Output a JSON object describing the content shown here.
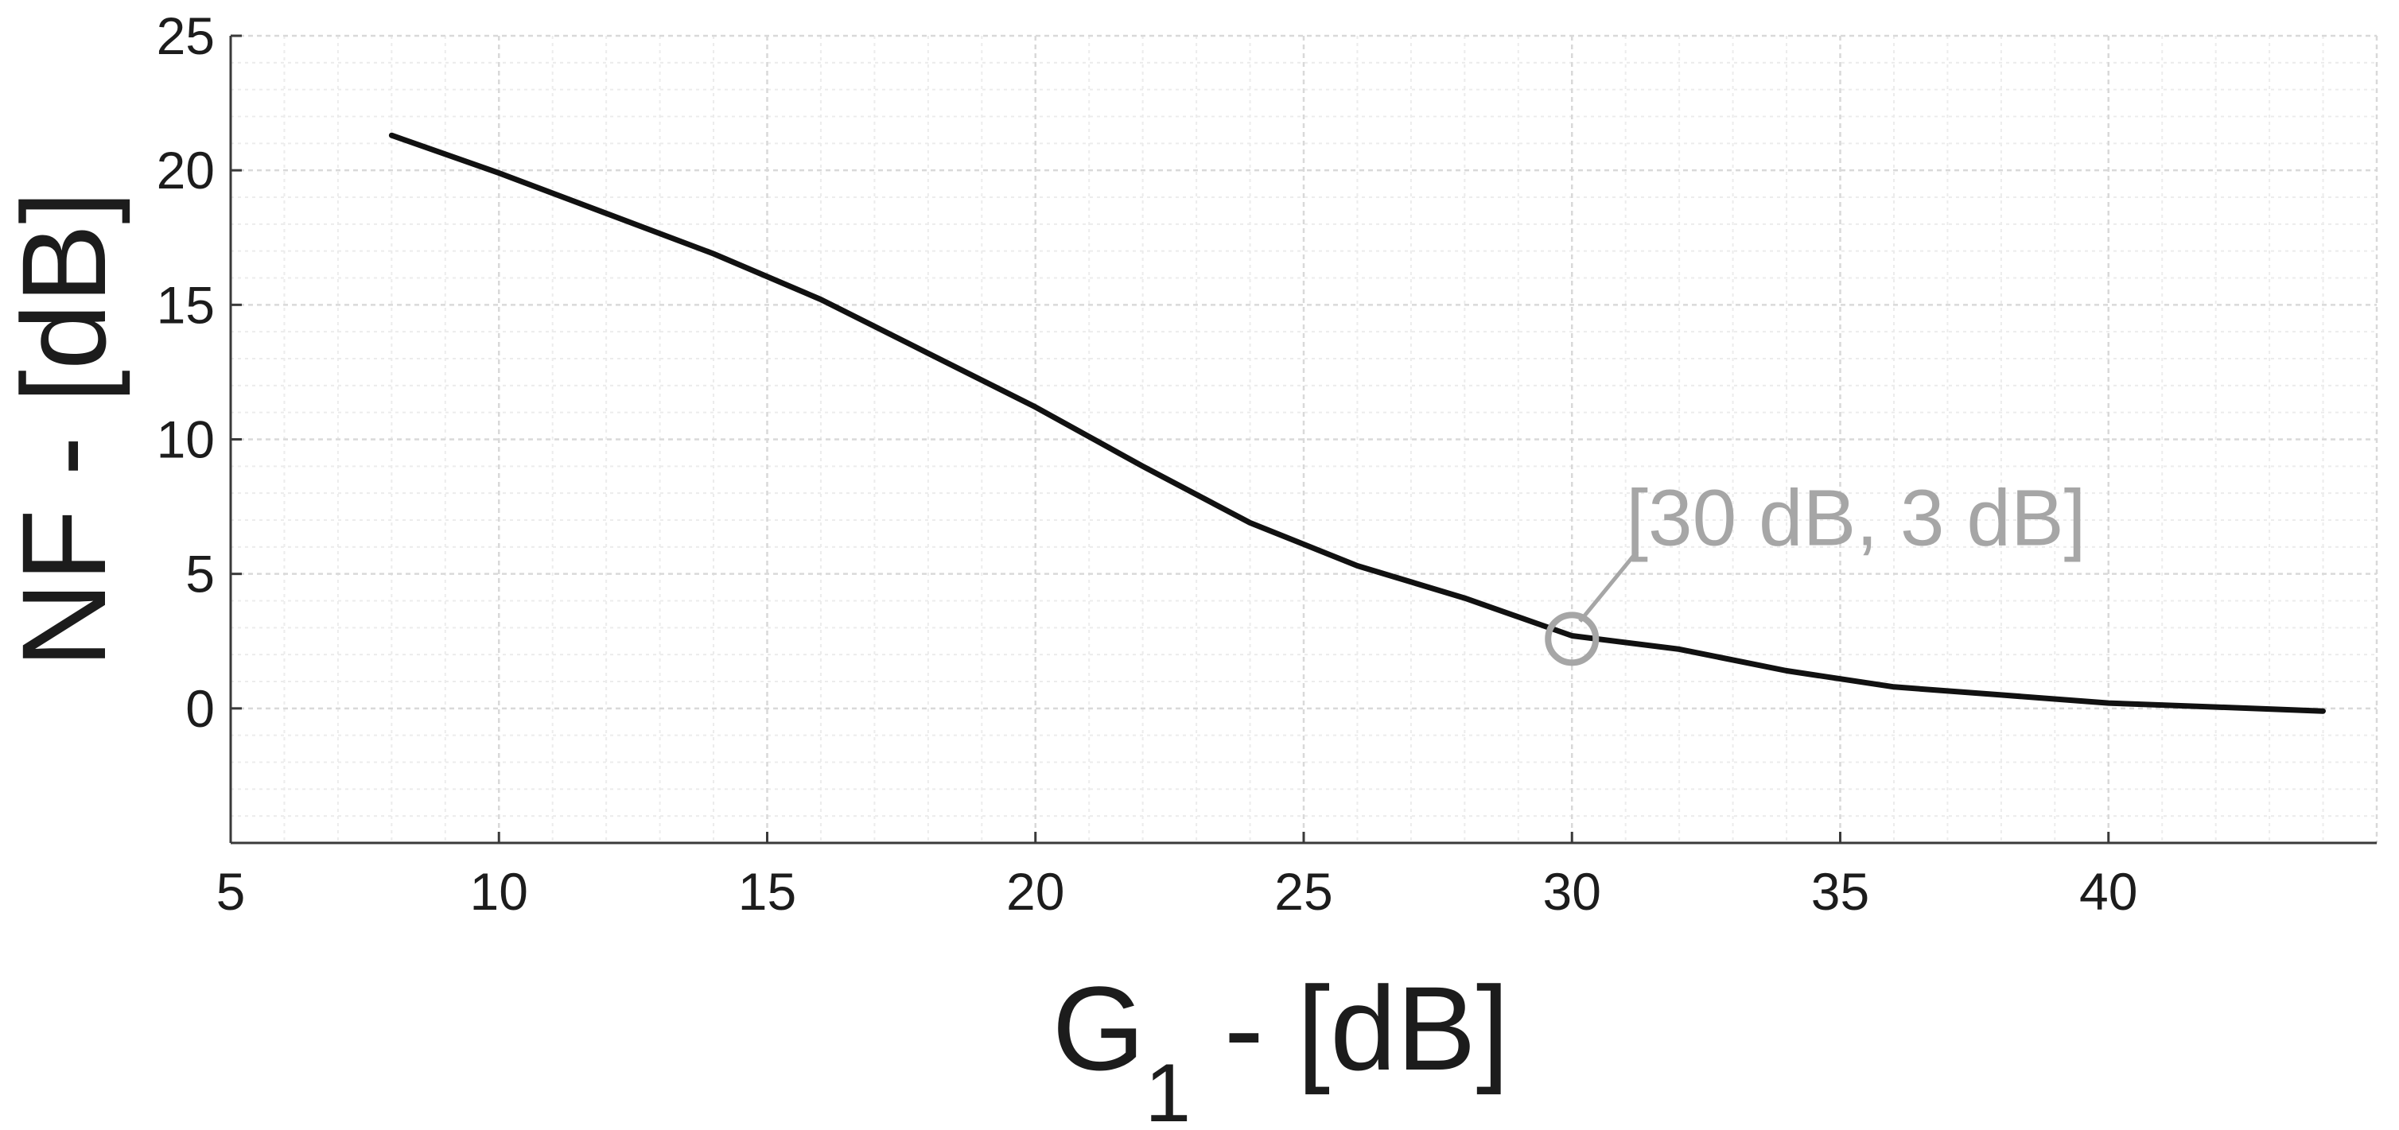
{
  "chart_data": {
    "type": "line",
    "title": "",
    "xlabel": {
      "main": "G",
      "subscript": "1",
      "suffix": " - [dB]"
    },
    "ylabel": "NF - [dB]",
    "xlim": [
      5,
      45
    ],
    "ylim": [
      -5,
      25
    ],
    "xticks": [
      5,
      10,
      15,
      20,
      25,
      30,
      35,
      40
    ],
    "yticks": [
      0,
      5,
      10,
      15,
      20,
      25
    ],
    "grid": true,
    "minor_grid": true,
    "series": [
      {
        "color": "#111111",
        "x": [
          8,
          10,
          12,
          14,
          16,
          18,
          20,
          22,
          24,
          26,
          28,
          30,
          32,
          34,
          36,
          38,
          40,
          42,
          44
        ],
        "y": [
          21.3,
          19.9,
          18.4,
          16.9,
          15.2,
          13.2,
          11.2,
          9.0,
          6.9,
          5.3,
          4.1,
          2.7,
          2.2,
          1.4,
          0.8,
          0.5,
          0.2,
          0.05,
          -0.1
        ]
      }
    ],
    "annotation": {
      "text": "[30 dB, 3 dB]",
      "x": 30,
      "y": 3,
      "color": "#a6a6a6"
    }
  }
}
